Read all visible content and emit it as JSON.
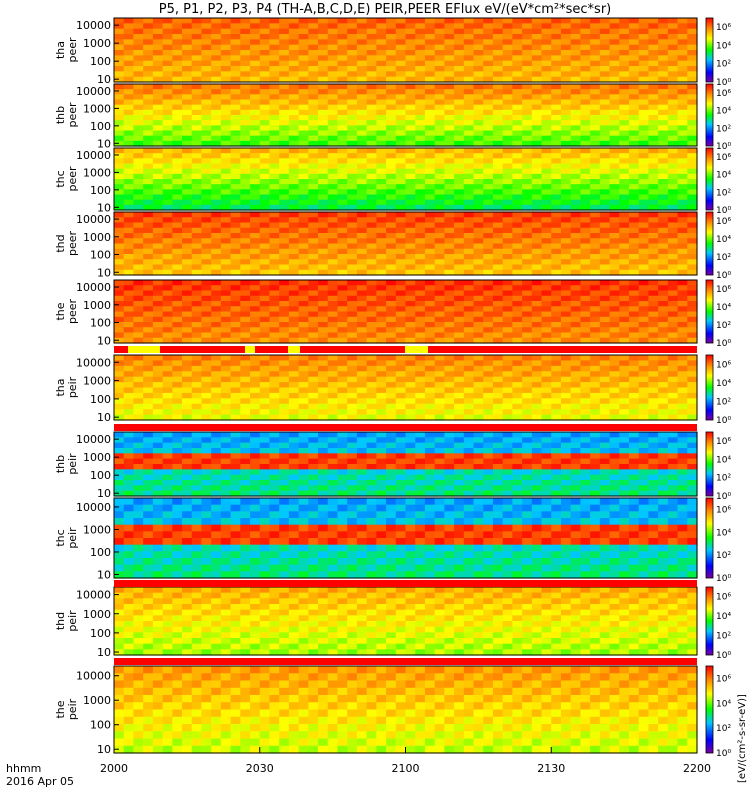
{
  "chart_data": {
    "type": "heatmap",
    "title": "P5, P1, P2, P3, P4 (TH-A,B,C,D,E) PEIR,PEER EFlux eV/(eV*cm²*sec*sr)",
    "xlabel": "hhmm",
    "date_label": "2016 Apr 05",
    "x_ticks": [
      "2000",
      "2030",
      "2100",
      "2130",
      "2200"
    ],
    "x_range_minutes": [
      0,
      120
    ],
    "colorbar_label": "[eV/(cm²-s-sr-eV)]",
    "colorbar_ticks": [
      "10⁰",
      "10²",
      "10⁴",
      "10⁶"
    ],
    "colorbar_range_log10": [
      0,
      7
    ],
    "y_scale": "log",
    "y_ticks": [
      "10",
      "100",
      "1000",
      "10000"
    ],
    "y_range_eV": [
      7,
      25000
    ],
    "panels": [
      {
        "probe": "tha",
        "species": "peer",
        "label_line1": "tha",
        "label_line2": "peer",
        "base_log": 5.6,
        "trend": "high",
        "bar_before": false
      },
      {
        "probe": "thb",
        "species": "peer",
        "label_line1": "thb",
        "label_line2": "peer",
        "base_log": 4.8,
        "trend": "decreasing",
        "bar_before": false
      },
      {
        "probe": "thc",
        "species": "peer",
        "label_line1": "thc",
        "label_line2": "peer",
        "base_log": 4.2,
        "trend": "decreasing",
        "bar_before": false
      },
      {
        "probe": "thd",
        "species": "peer",
        "label_line1": "thd",
        "label_line2": "peer",
        "base_log": 5.8,
        "trend": "flat",
        "bar_before": false
      },
      {
        "probe": "the",
        "species": "peer",
        "label_line1": "the",
        "label_line2": "peer",
        "base_log": 6.0,
        "trend": "high",
        "bar_before": false
      },
      {
        "probe": "tha",
        "species": "peir",
        "label_line1": "tha",
        "label_line2": "peir",
        "base_log": 5.2,
        "trend": "flat",
        "bar_before": true
      },
      {
        "probe": "thb",
        "species": "peir",
        "label_line1": "thb",
        "label_line2": "peir",
        "base_log": 3.8,
        "trend": "band",
        "bar_before": true
      },
      {
        "probe": "thc",
        "species": "peir",
        "label_line1": "thc",
        "label_line2": "peir",
        "base_log": 3.6,
        "trend": "band",
        "bar_before": true
      },
      {
        "probe": "thd",
        "species": "peir",
        "label_line1": "thd",
        "label_line2": "peir",
        "base_log": 4.8,
        "trend": "flat",
        "bar_before": true
      },
      {
        "probe": "the",
        "species": "peir",
        "label_line1": "the",
        "label_line2": "peir",
        "base_log": 5.0,
        "trend": "flat",
        "bar_before": true
      }
    ],
    "colors": {
      "frame": "#000000",
      "bar_red": "#ff0000",
      "bar_yellow": "#ffff00",
      "background": "#ffffff"
    }
  }
}
